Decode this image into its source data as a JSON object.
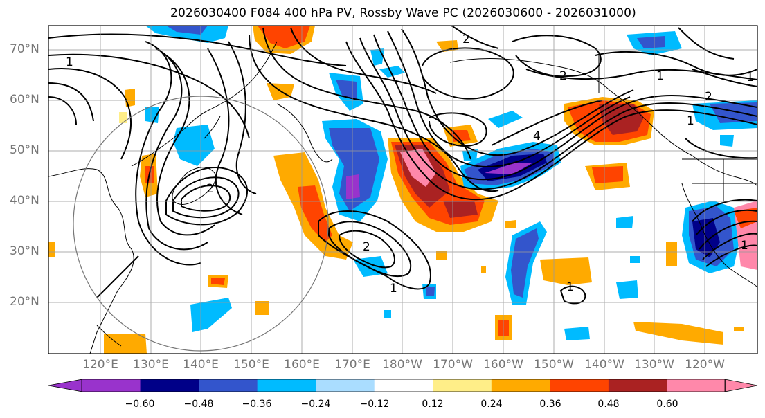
{
  "title": "2026030400 F084 400 hPa PV, Rossby Wave PC (2026030600 - 2026031000)",
  "lat_labels": [
    "70°N",
    "60°N",
    "50°N",
    "40°N",
    "30°N",
    "20°N"
  ],
  "lon_labels": [
    "120°E",
    "130°E",
    "140°E",
    "150°E",
    "160°E",
    "170°E",
    "180°W",
    "170°W",
    "160°W",
    "150°W",
    "140°W",
    "130°W",
    "120°W"
  ],
  "colorbar": {
    "ticks": [
      "−0.60",
      "−0.48",
      "−0.36",
      "−0.24",
      "−0.12",
      "0.12",
      "0.24",
      "0.36",
      "0.48",
      "0.60"
    ],
    "colors": [
      "#9933cc",
      "#000088",
      "#3355cc",
      "#00bbff",
      "#aaddff",
      "#ffffff",
      "#ffee88",
      "#ffaa00",
      "#ff4400",
      "#aa2222",
      "#ff88aa"
    ]
  },
  "contour_labels": [
    "1",
    "2",
    "2",
    "2",
    "1",
    "1",
    "1",
    "2",
    "2",
    "4",
    "1",
    "1",
    "1"
  ],
  "palette": {
    "purple": "#9933cc",
    "navy": "#000088",
    "blue": "#3355cc",
    "cyan": "#00bbff",
    "lightblue": "#aaddff",
    "yellow": "#ffee88",
    "orange": "#ffaa00",
    "red": "#ff4400",
    "darkred": "#aa2222",
    "pink": "#ff88aa"
  }
}
